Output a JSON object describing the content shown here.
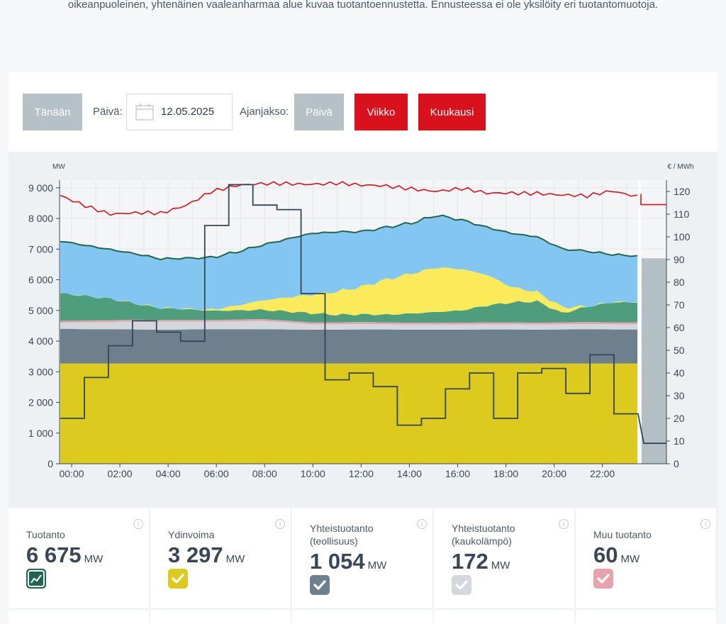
{
  "intro_text": "oikeanpuoleinen, yhtenäinen vaaleanharmaa alue kuvaa tuotantoennustetta. Ennusteessa ei ole yksilöity eri tuotantomuotoja.",
  "controls": {
    "today_label": "Tänään",
    "date_label": "Päivä:",
    "date_value": "12.05.2025",
    "period_label": "Ajanjakso:",
    "period_day": "Päivä",
    "period_week": "Viikko",
    "period_month": "Kuukausi"
  },
  "colors": {
    "nuclear": "#dcca1f",
    "industrial": "#6e7f8d",
    "district": "#d4d8dc",
    "other": "#e6a3ad",
    "hydro": "#4e9e7e",
    "solar": "#fbeb5b",
    "wind": "#84c6f2",
    "total_line": "#236650",
    "consumption": "#d8111c",
    "price": "#344556",
    "forecast": "#b4bec5"
  },
  "chart_data": {
    "type": "area",
    "x": [
      "00:00",
      "01:00",
      "02:00",
      "03:00",
      "04:00",
      "05:00",
      "06:00",
      "07:00",
      "08:00",
      "09:00",
      "10:00",
      "11:00",
      "12:00",
      "13:00",
      "14:00",
      "15:00",
      "16:00",
      "17:00",
      "18:00",
      "19:00",
      "20:00",
      "21:00",
      "22:00",
      "23:00"
    ],
    "xticks": [
      "00:00",
      "02:00",
      "04:00",
      "06:00",
      "08:00",
      "10:00",
      "12:00",
      "14:00",
      "16:00",
      "18:00",
      "20:00",
      "22:00"
    ],
    "y_left_label": "MW",
    "y_right_label": "€ / MWh",
    "y_left_ticks": [
      "0",
      "1 000",
      "2 000",
      "3 000",
      "4 000",
      "5 000",
      "6 000",
      "7 000",
      "8 000",
      "9 000"
    ],
    "y_right_ticks": [
      "0",
      "10",
      "20",
      "30",
      "40",
      "50",
      "60",
      "70",
      "80",
      "90",
      "100",
      "110",
      "120"
    ],
    "ylim": [
      0,
      9250
    ],
    "y2lim": [
      0,
      125
    ],
    "grid": true,
    "series": [
      {
        "key": "nuclear",
        "values": [
          3270,
          3270,
          3270,
          3270,
          3270,
          3270,
          3270,
          3270,
          3270,
          3270,
          3270,
          3270,
          3270,
          3270,
          3270,
          3270,
          3270,
          3270,
          3270,
          3270,
          3270,
          3270,
          3270,
          3270
        ]
      },
      {
        "key": "industrial",
        "values": [
          1130,
          1120,
          1120,
          1110,
          1100,
          1110,
          1120,
          1120,
          1120,
          1110,
          1100,
          1100,
          1110,
          1110,
          1100,
          1100,
          1100,
          1110,
          1110,
          1100,
          1110,
          1120,
          1110,
          1110
        ]
      },
      {
        "key": "district",
        "values": [
          200,
          220,
          230,
          260,
          260,
          250,
          240,
          250,
          270,
          230,
          180,
          180,
          180,
          170,
          170,
          170,
          170,
          170,
          170,
          170,
          170,
          170,
          170,
          170
        ]
      },
      {
        "key": "other",
        "values": [
          60,
          60,
          60,
          60,
          60,
          60,
          60,
          60,
          60,
          60,
          60,
          60,
          60,
          60,
          60,
          60,
          60,
          60,
          60,
          60,
          60,
          60,
          60,
          60
        ]
      },
      {
        "key": "hydro",
        "values": [
          900,
          800,
          700,
          520,
          380,
          350,
          300,
          300,
          300,
          300,
          300,
          250,
          250,
          250,
          300,
          350,
          400,
          550,
          650,
          700,
          300,
          500,
          650,
          650
        ]
      },
      {
        "key": "solar",
        "values": [
          0,
          0,
          0,
          0,
          0,
          0,
          30,
          150,
          300,
          450,
          600,
          750,
          900,
          1150,
          1300,
          1450,
          1350,
          1000,
          500,
          300,
          200,
          0,
          0,
          0
        ]
      },
      {
        "key": "wind",
        "values": [
          1700,
          1650,
          1600,
          1620,
          1600,
          1650,
          1700,
          1750,
          1800,
          1900,
          2000,
          1950,
          1800,
          1700,
          1650,
          1700,
          1600,
          1550,
          1750,
          1800,
          1900,
          1800,
          1550,
          1500
        ]
      }
    ],
    "consumption": [
      8750,
      8450,
      8150,
      8150,
      8150,
      8450,
      8900,
      9050,
      9100,
      9150,
      9150,
      9150,
      9050,
      9050,
      9000,
      8900,
      8950,
      8800,
      8850,
      8850,
      8750,
      8700,
      8900,
      8750
    ],
    "price": [
      20,
      38,
      52,
      63,
      58,
      54,
      105,
      123,
      114,
      112,
      75,
      37,
      40,
      34,
      17,
      20,
      33,
      40,
      20,
      40,
      42,
      31,
      48,
      22
    ],
    "forecast_value": 6700,
    "forecast_price": 9,
    "forecast_consumption": 8450
  },
  "cards": [
    {
      "title": "Tuotanto",
      "value": "6 675",
      "unit": "MW",
      "icon": "chart-line-icon",
      "color": "#236650"
    },
    {
      "title": "Ydinvoima",
      "value": "3 297",
      "unit": "MW",
      "icon": "check-icon",
      "color": "#dcca1f"
    },
    {
      "title": "Yhteistuotanto (teollisuus)",
      "value": "1 054",
      "unit": "MW",
      "icon": "check-icon",
      "color": "#6e7f8d"
    },
    {
      "title": "Yhteistuotanto (kaukolämpö)",
      "value": "172",
      "unit": "MW",
      "icon": "check-icon",
      "color": "#d4d8dc"
    },
    {
      "title": "Muu tuotanto",
      "value": "60",
      "unit": "MW",
      "icon": "check-icon",
      "color": "#e6a3ad"
    }
  ]
}
